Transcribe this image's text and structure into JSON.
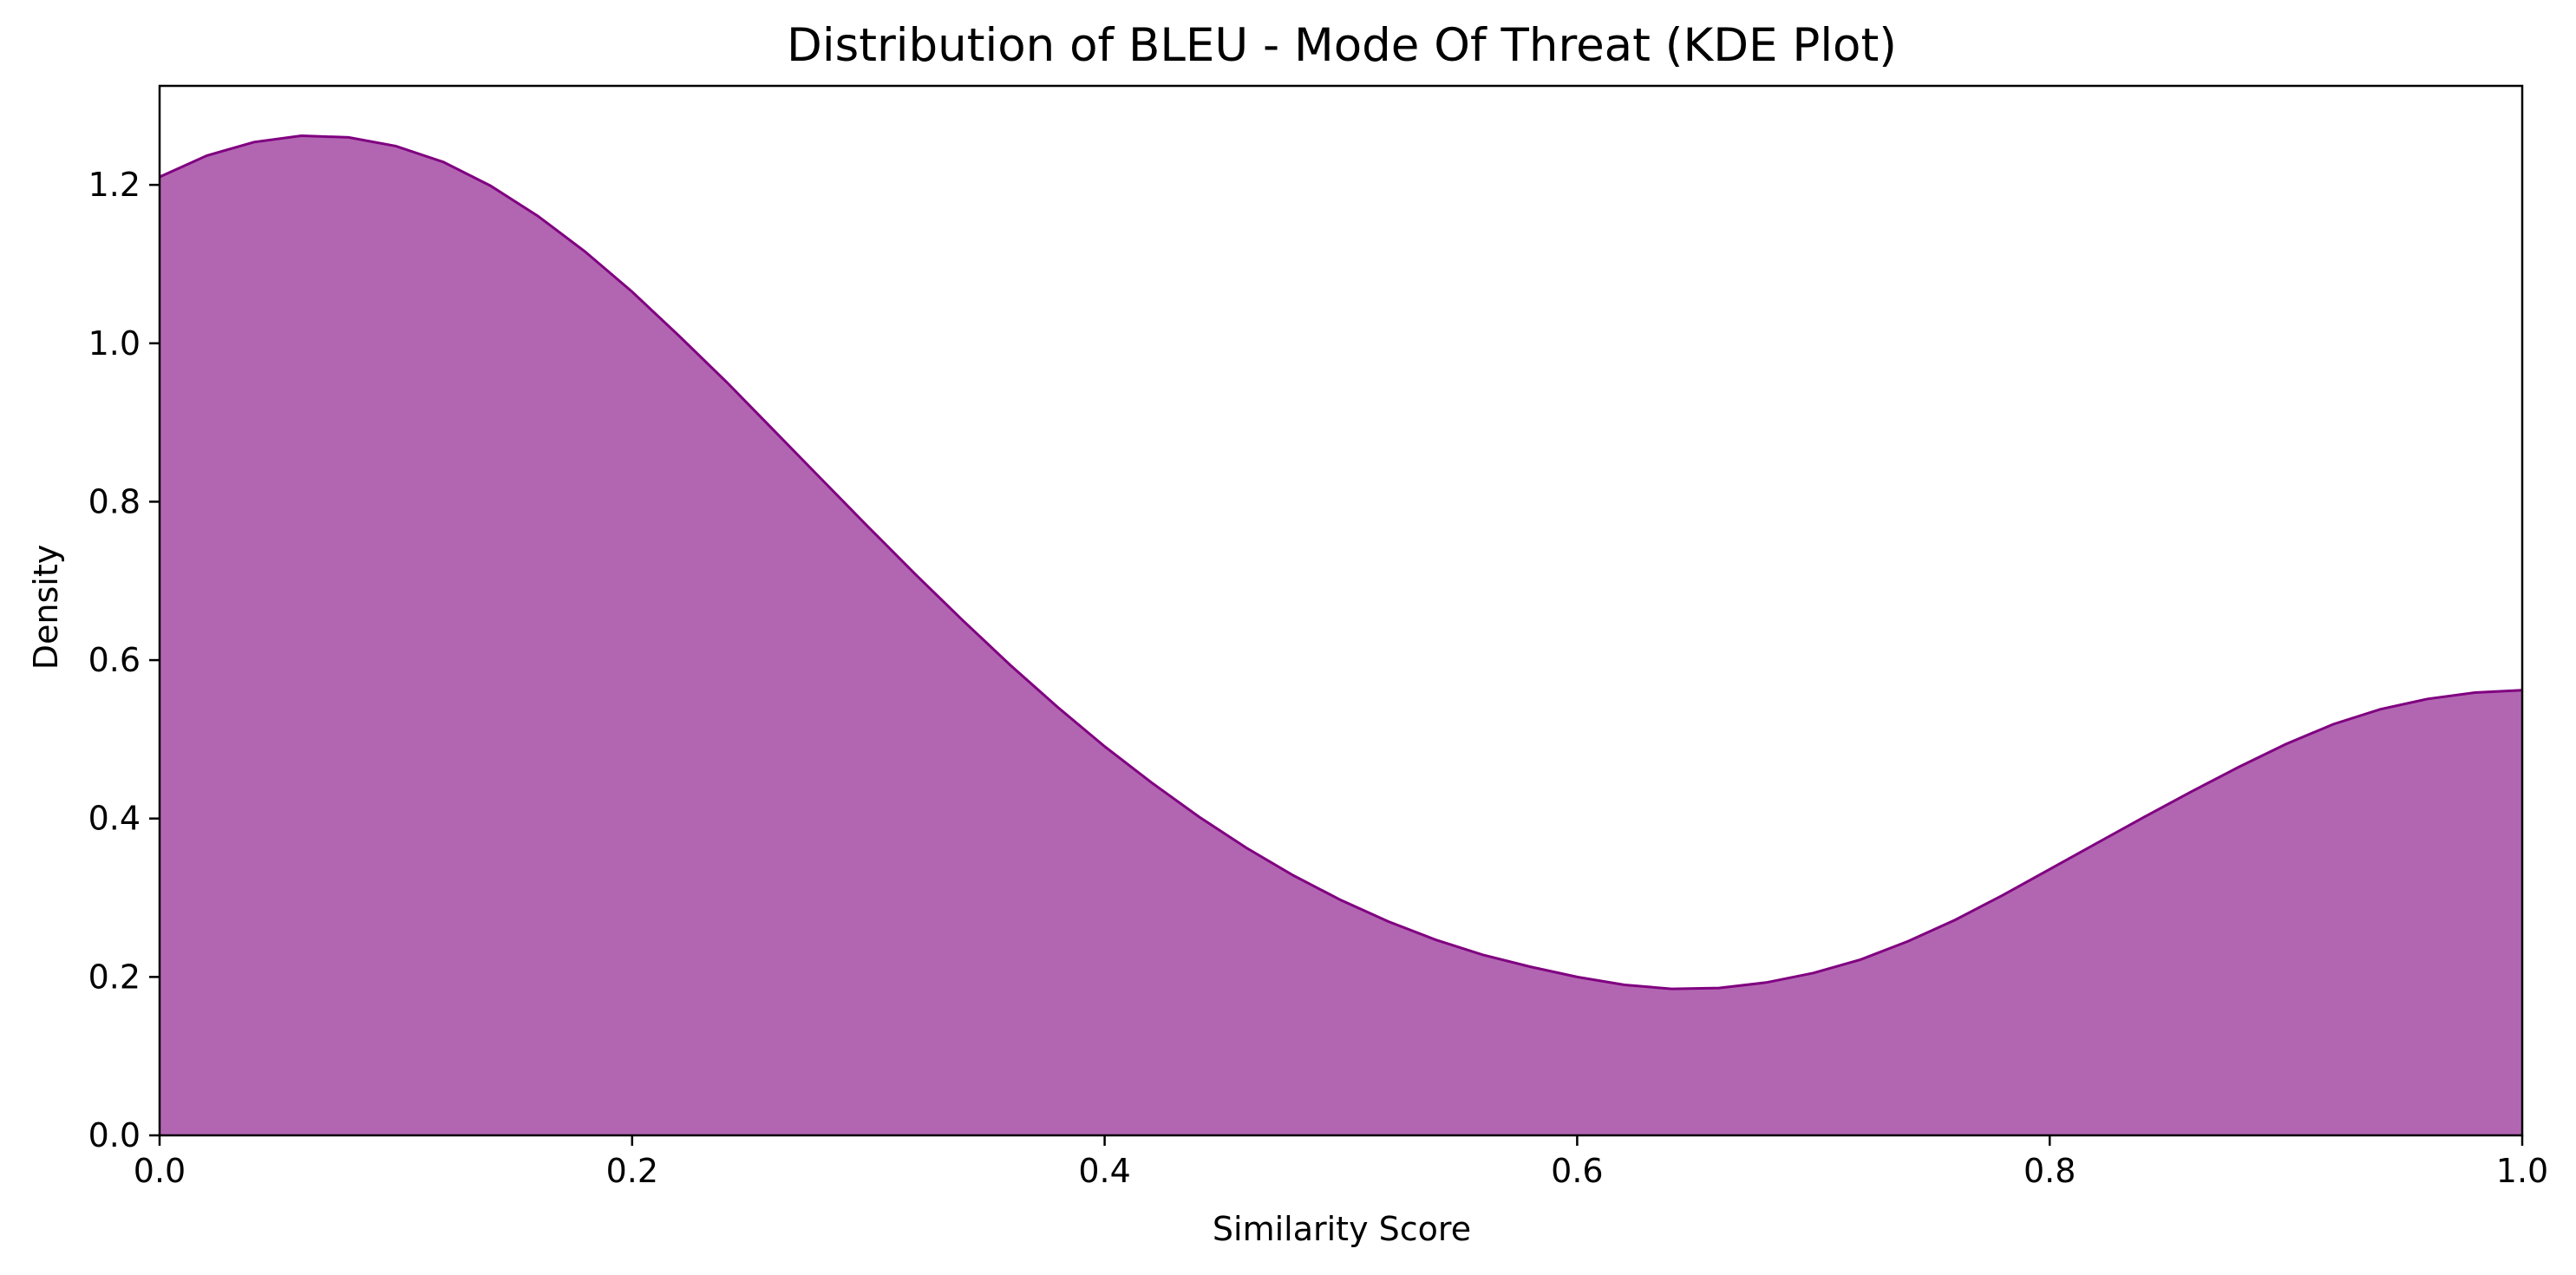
{
  "chart_data": {
    "type": "area",
    "title": "Distribution of BLEU - Mode Of Threat (KDE Plot)",
    "xlabel": "Similarity Score",
    "ylabel": "Density",
    "xlim": [
      0.0,
      1.0
    ],
    "ylim": [
      0.0,
      1.325
    ],
    "x_ticks": [
      "0.0",
      "0.2",
      "0.4",
      "0.6",
      "0.8",
      "1.0"
    ],
    "y_ticks": [
      "0.0",
      "0.2",
      "0.4",
      "0.6",
      "0.8",
      "1.0",
      "1.2"
    ],
    "grid": false,
    "legend": "none",
    "fill_color": "#b266b2",
    "line_color": "#800080",
    "series": [
      {
        "x": [
          0.0,
          0.02,
          0.04,
          0.06,
          0.08,
          0.1,
          0.12,
          0.14,
          0.16,
          0.18,
          0.2,
          0.22,
          0.24,
          0.26,
          0.28,
          0.3,
          0.32,
          0.34,
          0.36,
          0.38,
          0.4,
          0.42,
          0.44,
          0.46,
          0.48,
          0.5,
          0.52,
          0.54,
          0.56,
          0.58,
          0.6,
          0.62,
          0.64,
          0.66,
          0.68,
          0.7,
          0.72,
          0.74,
          0.76,
          0.78,
          0.8,
          0.82,
          0.84,
          0.86,
          0.88,
          0.9,
          0.92,
          0.94,
          0.96,
          0.98,
          1.0
        ],
        "y": [
          1.21,
          1.237,
          1.254,
          1.262,
          1.26,
          1.249,
          1.229,
          1.199,
          1.161,
          1.116,
          1.065,
          1.009,
          0.951,
          0.89,
          0.829,
          0.768,
          0.708,
          0.65,
          0.594,
          0.541,
          0.491,
          0.445,
          0.402,
          0.363,
          0.328,
          0.297,
          0.27,
          0.247,
          0.228,
          0.213,
          0.2,
          0.19,
          0.185,
          0.186,
          0.193,
          0.205,
          0.222,
          0.245,
          0.272,
          0.303,
          0.336,
          0.369,
          0.402,
          0.434,
          0.465,
          0.494,
          0.519,
          0.538,
          0.551,
          0.559,
          0.562
        ]
      }
    ]
  }
}
